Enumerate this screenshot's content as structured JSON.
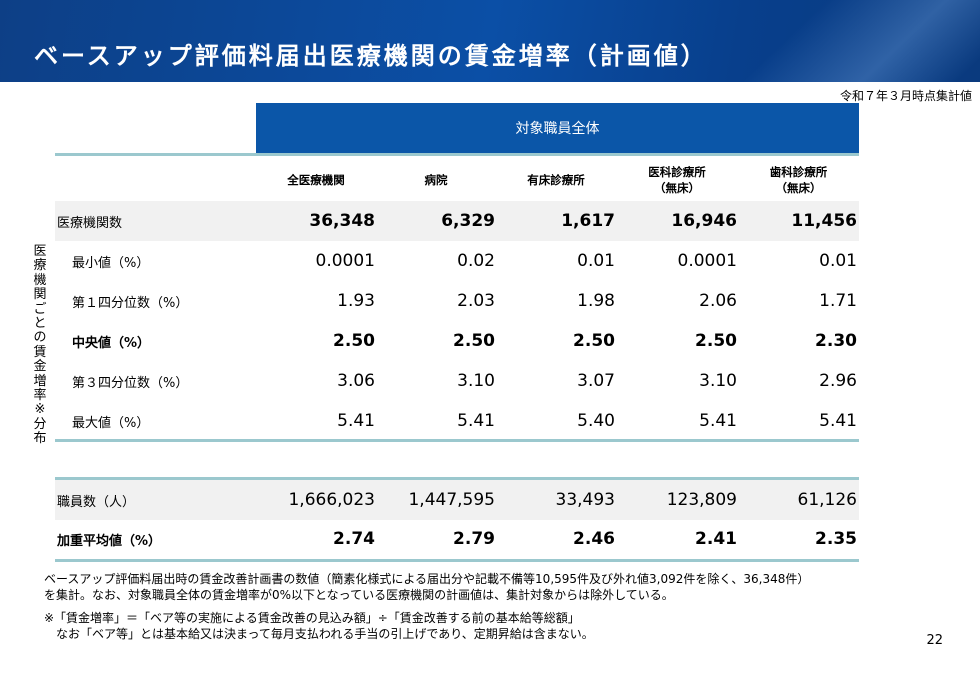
{
  "title": "ベースアップ評価料届出医療機関の賃金増率（計画値）",
  "as_of": "令和７年３月時点集計値",
  "group_header": "対象職員全体",
  "columns": [
    "全医療機関",
    "病院",
    "有床診療所",
    "医科診療所\n（無床）",
    "歯科診療所\n（無床）"
  ],
  "vertical_label": "医療機関ごとの賃金増率※分布",
  "rows": [
    {
      "label": "医療機関数",
      "values": [
        "36,348",
        "6,329",
        "1,617",
        "16,946",
        "11,456"
      ]
    },
    {
      "label": "最小値（%）",
      "values": [
        "0.0001",
        "0.02",
        "0.01",
        "0.0001",
        "0.01"
      ]
    },
    {
      "label": "第１四分位数（%）",
      "values": [
        "1.93",
        "2.03",
        "1.98",
        "2.06",
        "1.71"
      ]
    },
    {
      "label": "中央値（%）",
      "values": [
        "2.50",
        "2.50",
        "2.50",
        "2.50",
        "2.30"
      ]
    },
    {
      "label": "第３四分位数（%）",
      "values": [
        "3.06",
        "3.10",
        "3.07",
        "3.10",
        "2.96"
      ]
    },
    {
      "label": "最大値（%）",
      "values": [
        "5.41",
        "5.41",
        "5.40",
        "5.41",
        "5.41"
      ]
    },
    {
      "label": "職員数（人）",
      "values": [
        "1,666,023",
        "1,447,595",
        "33,493",
        "123,809",
        "61,126"
      ]
    },
    {
      "label": "加重平均値（%）",
      "values": [
        "2.74",
        "2.79",
        "2.46",
        "2.41",
        "2.35"
      ]
    }
  ],
  "notes": [
    "ベースアップ評価料届出時の賃金改善計画書の数値（簡素化様式による届出分や記載不備等10,595件及び外れ値3,092件を除く、36,348件）",
    "を集計。なお、対象職員全体の賃金増率が0%以下となっている医療機関の計画値は、集計対象からは除外している。",
    "※「賃金増率」＝「ベア等の実施による賃金改善の見込み額」÷「賃金改善する前の基本給等総額」",
    "　なお「ベア等」とは基本給又は決まって毎月支払われる手当の引上げであり、定期昇給は含まない。"
  ],
  "page_number": "22"
}
